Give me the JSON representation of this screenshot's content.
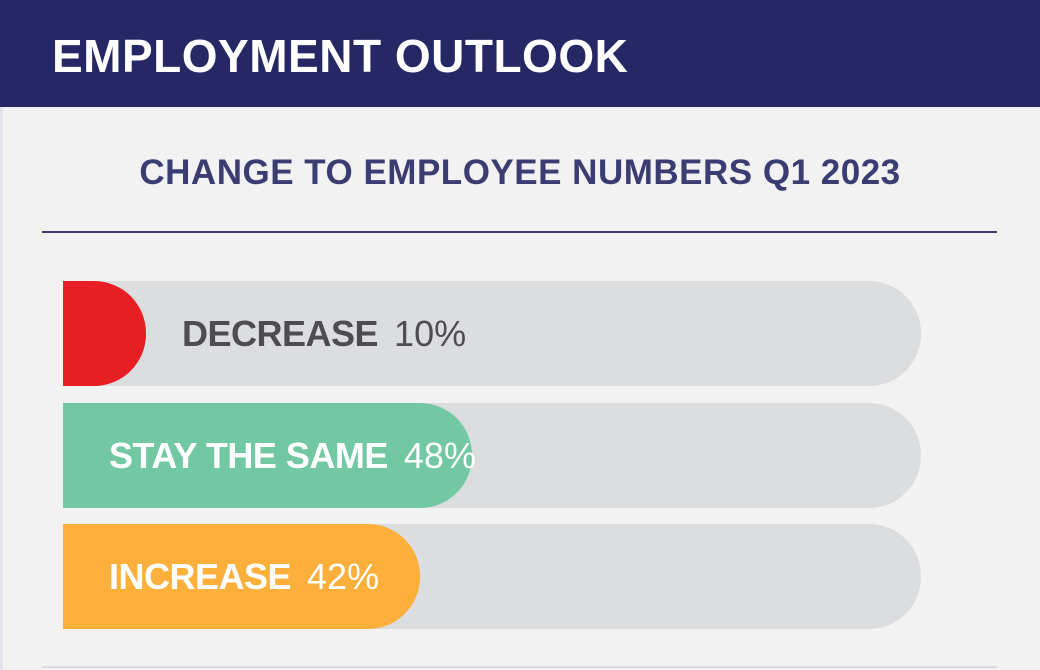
{
  "header": {
    "title": "EMPLOYMENT OUTLOOK"
  },
  "chart_data": {
    "type": "bar",
    "orientation": "horizontal",
    "title": "CHANGE TO EMPLOYEE NUMBERS Q1 2023",
    "categories": [
      "DECREASE",
      "STAY THE SAME",
      "INCREASE"
    ],
    "values": [
      10,
      48,
      42
    ],
    "value_labels": [
      "10%",
      "48%",
      "42%"
    ],
    "unit": "%",
    "xlim": [
      0,
      100
    ],
    "colors": [
      "#e81e25",
      "#72c8a2",
      "#fcaf3b"
    ],
    "track_color": "#dcdddf",
    "label_colors": [
      "#4d4d4f",
      "#ffffff",
      "#ffffff"
    ]
  }
}
